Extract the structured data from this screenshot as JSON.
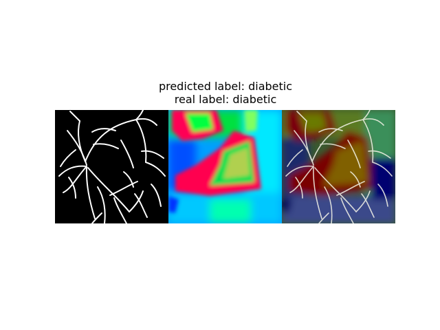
{
  "figure": {
    "title_line1": "predicted label: diabetic",
    "title_line2": "real label: diabetic"
  },
  "panels": [
    {
      "name": "vessel-segmentation",
      "background": "#000000",
      "vessel_color": "#ffffff"
    },
    {
      "name": "activation-heatmap",
      "palette": [
        "#ff0055",
        "#00ff44",
        "#0044ff",
        "#00e6ff",
        "#b0d050"
      ]
    },
    {
      "name": "heatmap-overlay",
      "palette": [
        "#7a0000",
        "#806000",
        "#000070",
        "#3a8f5a"
      ]
    }
  ]
}
